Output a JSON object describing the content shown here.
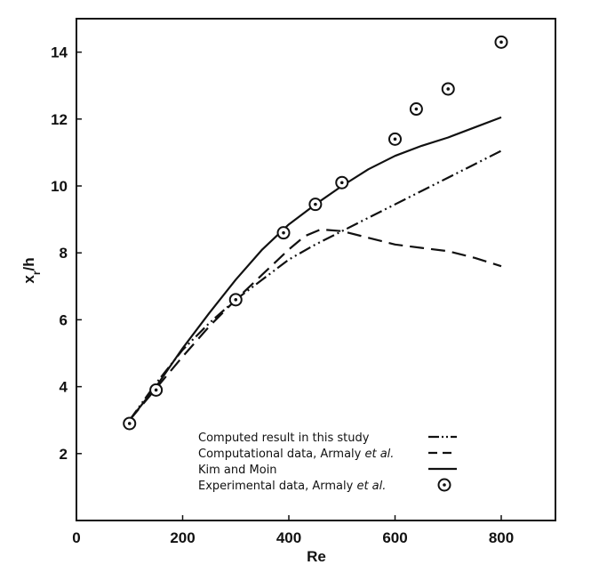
{
  "chart_data": {
    "type": "line",
    "xlabel": "Re",
    "ylabel_main": "x",
    "ylabel_sub": "r",
    "ylabel_tail": "/h",
    "xlim": [
      0,
      900
    ],
    "ylim": [
      0,
      15
    ],
    "xticks": [
      0,
      200,
      400,
      600,
      800
    ],
    "yticks": [
      2,
      4,
      6,
      8,
      10,
      12,
      14
    ],
    "grid": false,
    "legend_position": "bottom-right",
    "series": [
      {
        "name": "Computed result in this study",
        "name_main": "Computed result in this study",
        "name_tail": "",
        "style": "dash-dot-dot",
        "x": [
          100,
          150,
          200,
          250,
          300,
          350,
          400,
          450,
          500,
          550,
          600,
          650,
          700,
          750,
          800
        ],
        "y": [
          3.0,
          4.1,
          5.1,
          5.9,
          6.6,
          7.2,
          7.8,
          8.25,
          8.65,
          9.05,
          9.45,
          9.85,
          10.25,
          10.65,
          11.05
        ]
      },
      {
        "name": "Computational data, Armaly et al.",
        "name_main": "Computational data, Armaly ",
        "name_tail": "et al.",
        "style": "dashed",
        "x": [
          100,
          150,
          200,
          250,
          300,
          350,
          400,
          430,
          460,
          500,
          550,
          600,
          650,
          700,
          750,
          800
        ],
        "y": [
          3.0,
          3.95,
          4.9,
          5.8,
          6.6,
          7.35,
          8.1,
          8.5,
          8.7,
          8.65,
          8.45,
          8.25,
          8.15,
          8.05,
          7.85,
          7.6
        ]
      },
      {
        "name": "Kim and Moin",
        "name_main": "Kim and Moin",
        "name_tail": "",
        "style": "solid",
        "x": [
          100,
          150,
          200,
          250,
          300,
          350,
          400,
          450,
          500,
          550,
          600,
          650,
          700,
          750,
          800
        ],
        "y": [
          3.0,
          4.0,
          5.15,
          6.2,
          7.2,
          8.1,
          8.85,
          9.45,
          10.0,
          10.5,
          10.9,
          11.2,
          11.45,
          11.75,
          12.05
        ]
      },
      {
        "name": "Experimental data, Armaly et al.",
        "name_main": "Experimental data, Armaly ",
        "name_tail": "et al.",
        "style": "circle-markers",
        "x": [
          100,
          150,
          300,
          390,
          450,
          500,
          600,
          640,
          700,
          800
        ],
        "y": [
          2.9,
          3.9,
          6.6,
          8.6,
          9.45,
          10.1,
          11.4,
          12.3,
          12.9,
          14.3
        ]
      }
    ]
  }
}
